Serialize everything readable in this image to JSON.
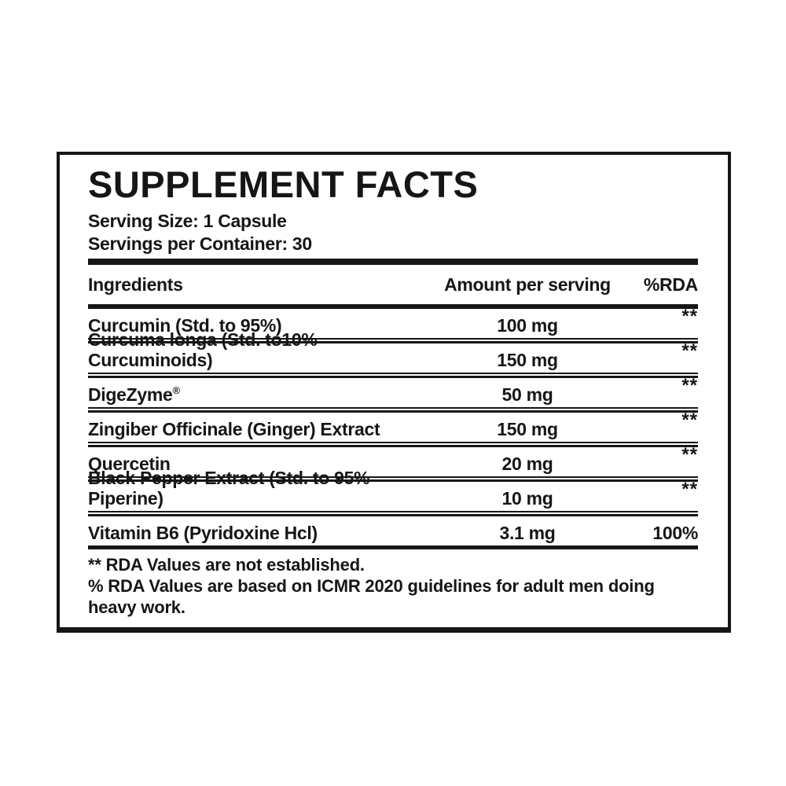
{
  "panel": {
    "title": "SUPPLEMENT FACTS",
    "serving_size": "Serving Size: 1 Capsule",
    "servings_per_container": "Servings per Container: 30",
    "table": {
      "headers": [
        "Ingredients",
        "Amount per serving",
        "%RDA"
      ],
      "rows": [
        {
          "ingredient": "Curcumin (Std. to 95%)",
          "amount": "100 mg",
          "rda": "**"
        },
        {
          "ingredient": "Curcuma longa (Std. to10% Curcuminoids)",
          "amount": "150 mg",
          "rda": "**"
        },
        {
          "ingredient": "DigeZyme",
          "mark": "®",
          "amount": "50 mg",
          "rda": "**"
        },
        {
          "ingredient": "Zingiber Officinale (Ginger) Extract",
          "amount": "150 mg",
          "rda": "**"
        },
        {
          "ingredient": "Quercetin",
          "amount": "20 mg",
          "rda": "**"
        },
        {
          "ingredient": "Black Pepper Extract (Std. to 95% Piperine)",
          "amount": "10 mg",
          "rda": "**"
        },
        {
          "ingredient": "Vitamin B6 (Pyridoxine Hcl)",
          "amount": "3.1 mg",
          "rda": "100%"
        }
      ]
    },
    "footnotes": [
      "** RDA Values are not established.",
      "% RDA Values are based on ICMR 2020 guidelines for adult men doing heavy work."
    ],
    "colors": {
      "ink": "#161616",
      "background": "#ffffff"
    }
  }
}
